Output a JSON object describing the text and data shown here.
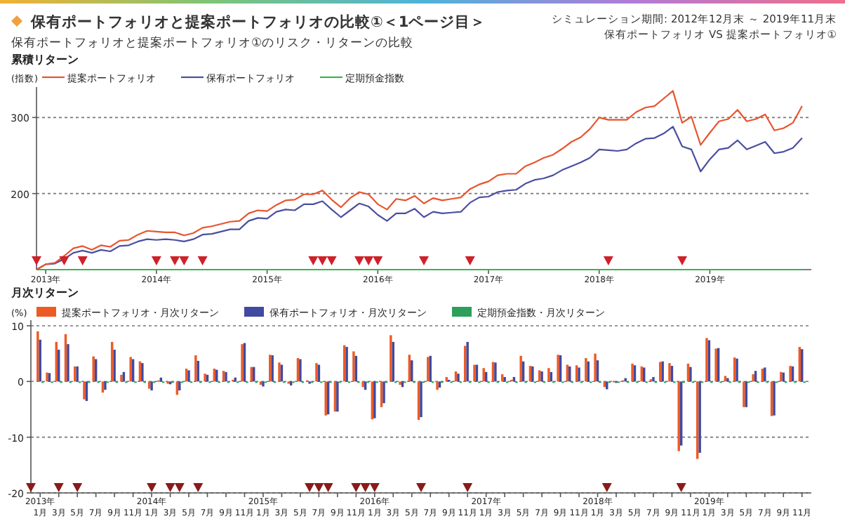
{
  "chart_data": [
    {
      "type": "other",
      "title": "保有ポートフォリオと提案ポートフォリオの比較①＜1ページ目＞",
      "subtitle": "保有ポートフォリオと提案ポートフォリオ①のリスク・リターンの比較",
      "annotations": [
        "シミュレーション期間: 2012年12月末 ～ 2019年11月末",
        "保有ポートフォリオ VS 提案ポートフォリオ①"
      ]
    },
    {
      "type": "line",
      "title": "累積リターン",
      "ylabel": "(指数)",
      "legend": "top left",
      "grid": "y",
      "xlim": [
        "2012-12",
        "2019-12"
      ],
      "ylim": [
        100,
        340
      ],
      "yticks": [
        200,
        300
      ],
      "xticks": [
        {
          "value": "2013-01",
          "label": "2013年"
        },
        {
          "value": "2014-01",
          "label": "2014年"
        },
        {
          "value": "2015-01",
          "label": "2015年"
        },
        {
          "value": "2016-01",
          "label": "2016年"
        },
        {
          "value": "2017-01",
          "label": "2017年"
        },
        {
          "value": "2018-01",
          "label": "2018年"
        },
        {
          "value": "2019-01",
          "label": "2019年"
        }
      ],
      "x": [
        "2012-12",
        "2013-01",
        "2013-02",
        "2013-03",
        "2013-04",
        "2013-05",
        "2013-06",
        "2013-07",
        "2013-08",
        "2013-09",
        "2013-10",
        "2013-11",
        "2013-12",
        "2014-01",
        "2014-02",
        "2014-03",
        "2014-04",
        "2014-05",
        "2014-06",
        "2014-07",
        "2014-08",
        "2014-09",
        "2014-10",
        "2014-11",
        "2014-12",
        "2015-01",
        "2015-02",
        "2015-03",
        "2015-04",
        "2015-05",
        "2015-06",
        "2015-07",
        "2015-08",
        "2015-09",
        "2015-10",
        "2015-11",
        "2015-12",
        "2016-01",
        "2016-02",
        "2016-03",
        "2016-04",
        "2016-05",
        "2016-06",
        "2016-07",
        "2016-08",
        "2016-09",
        "2016-10",
        "2016-11",
        "2016-12",
        "2017-01",
        "2017-02",
        "2017-03",
        "2017-04",
        "2017-05",
        "2017-06",
        "2017-07",
        "2017-08",
        "2017-09",
        "2017-10",
        "2017-11",
        "2017-12",
        "2018-01",
        "2018-02",
        "2018-03",
        "2018-04",
        "2018-05",
        "2018-06",
        "2018-07",
        "2018-08",
        "2018-09",
        "2018-10",
        "2018-11",
        "2018-12",
        "2019-01",
        "2019-02",
        "2019-03",
        "2019-04",
        "2019-05",
        "2019-06",
        "2019-07",
        "2019-08",
        "2019-09",
        "2019-10",
        "2019-11"
      ],
      "series": [
        {
          "name": "定期預金指数",
          "color": "#3cb44b",
          "values": [
            100,
            100,
            100,
            100,
            100,
            100,
            100,
            100,
            100,
            100,
            100,
            100,
            100,
            100,
            100,
            100,
            100,
            100,
            100,
            100,
            100,
            100,
            100,
            100,
            100,
            100,
            100,
            100,
            100,
            100,
            100,
            100,
            100,
            100,
            100,
            100,
            100,
            100,
            100,
            100,
            100,
            100,
            100,
            100,
            100,
            100,
            100,
            100,
            100,
            100,
            100,
            100,
            100,
            100,
            100,
            100,
            100,
            100,
            100,
            100,
            100,
            100,
            100,
            100,
            100,
            100,
            100,
            100,
            100,
            100,
            100,
            100,
            100,
            100,
            100,
            100,
            100,
            100,
            100,
            100,
            100,
            100,
            100,
            100
          ]
        },
        {
          "name": "保有ポートフォリオ",
          "color": "#4a4fa0",
          "values": [
            100,
            107,
            108,
            114,
            122,
            125,
            122,
            126,
            124,
            131,
            132,
            137,
            140,
            139,
            140,
            139,
            137,
            140,
            146,
            147,
            150,
            153,
            153,
            164,
            168,
            167,
            176,
            179,
            178,
            186,
            186,
            190,
            179,
            169,
            178,
            187,
            183,
            172,
            164,
            174,
            174,
            180,
            169,
            176,
            174,
            175,
            176,
            188,
            195,
            196,
            202,
            204,
            205,
            213,
            218,
            220,
            224,
            231,
            236,
            241,
            247,
            258,
            257,
            256,
            258,
            266,
            272,
            273,
            279,
            288,
            262,
            258,
            229,
            245,
            258,
            260,
            270,
            258,
            263,
            268,
            253,
            255,
            260,
            273
          ]
        },
        {
          "name": "提案ポートフォリオ",
          "color": "#e8542e",
          "values": [
            100,
            107,
            109,
            118,
            128,
            131,
            126,
            132,
            130,
            138,
            139,
            146,
            151,
            150,
            149,
            149,
            145,
            148,
            155,
            157,
            160,
            163,
            164,
            174,
            178,
            177,
            185,
            191,
            192,
            199,
            199,
            204,
            192,
            182,
            194,
            202,
            199,
            186,
            179,
            193,
            191,
            197,
            187,
            194,
            191,
            193,
            195,
            206,
            212,
            216,
            224,
            226,
            226,
            236,
            241,
            247,
            251,
            259,
            268,
            274,
            285,
            300,
            297,
            297,
            297,
            307,
            313,
            315,
            325,
            335,
            293,
            301,
            264,
            280,
            295,
            298,
            310,
            295,
            298,
            304,
            283,
            286,
            293,
            315
          ]
        },
        {
          "type": "scatter",
          "marker": "triangle",
          "color": "#d0202a",
          "x": [
            "2012-12",
            "2013-03",
            "2013-05",
            "2014-01",
            "2014-03",
            "2014-04",
            "2014-06",
            "2015-06",
            "2015-07",
            "2015-08",
            "2015-11",
            "2015-12",
            "2016-01",
            "2016-06",
            "2016-11",
            "2018-02",
            "2018-10"
          ],
          "values": [
            112,
            112,
            112,
            112,
            112,
            112,
            112,
            112,
            112,
            112,
            112,
            112,
            112,
            112,
            112,
            112,
            112
          ]
        }
      ]
    },
    {
      "type": "bar",
      "title": "月次リターン",
      "ylabel": "(%)",
      "legend": "top left",
      "grid": "y",
      "xlim": [
        "2012-12",
        "2019-12"
      ],
      "ylim": [
        -20,
        11
      ],
      "yticks": [
        10,
        0,
        -10,
        -20
      ],
      "xticks": [
        {
          "value": "2013-01",
          "label": "2013年\n1月"
        },
        {
          "value": "2013-03",
          "label": "3月"
        },
        {
          "value": "2013-05",
          "label": "5月"
        },
        {
          "value": "2013-07",
          "label": "7月"
        },
        {
          "value": "2013-09",
          "label": "9月"
        },
        {
          "value": "2013-11",
          "label": "11月"
        },
        {
          "value": "2014-01",
          "label": "2014年\n1月"
        },
        {
          "value": "2014-03",
          "label": "3月"
        },
        {
          "value": "2014-05",
          "label": "5月"
        },
        {
          "value": "2014-07",
          "label": "7月"
        },
        {
          "value": "2014-09",
          "label": "9月"
        },
        {
          "value": "2014-11",
          "label": "11月"
        },
        {
          "value": "2015-01",
          "label": "2015年\n1月"
        },
        {
          "value": "2015-03",
          "label": "3月"
        },
        {
          "value": "2015-05",
          "label": "5月"
        },
        {
          "value": "2015-07",
          "label": "7月"
        },
        {
          "value": "2015-09",
          "label": "9月"
        },
        {
          "value": "2015-11",
          "label": "11月"
        },
        {
          "value": "2016-01",
          "label": "2016年\n1月"
        },
        {
          "value": "2016-03",
          "label": "3月"
        },
        {
          "value": "2016-05",
          "label": "5月"
        },
        {
          "value": "2016-07",
          "label": "7月"
        },
        {
          "value": "2016-09",
          "label": "9月"
        },
        {
          "value": "2016-11",
          "label": "11月"
        },
        {
          "value": "2017-01",
          "label": "2017年\n1月"
        },
        {
          "value": "2017-03",
          "label": "3月"
        },
        {
          "value": "2017-05",
          "label": "5月"
        },
        {
          "value": "2017-07",
          "label": "7月"
        },
        {
          "value": "2017-09",
          "label": "9月"
        },
        {
          "value": "2017-11",
          "label": "11月"
        },
        {
          "value": "2018-01",
          "label": "2018年\n1月"
        },
        {
          "value": "2018-03",
          "label": "3月"
        },
        {
          "value": "2018-05",
          "label": "5月"
        },
        {
          "value": "2018-07",
          "label": "7月"
        },
        {
          "value": "2018-09",
          "label": "9月"
        },
        {
          "value": "2018-11",
          "label": "11月"
        },
        {
          "value": "2019-01",
          "label": "2019年\n1月"
        },
        {
          "value": "2019-03",
          "label": "3月"
        },
        {
          "value": "2019-05",
          "label": "5月"
        },
        {
          "value": "2019-07",
          "label": "7月"
        },
        {
          "value": "2019-09",
          "label": "9月"
        },
        {
          "value": "2019-11",
          "label": "11月"
        }
      ],
      "x": [
        "2013-01",
        "2013-02",
        "2013-03",
        "2013-04",
        "2013-05",
        "2013-06",
        "2013-07",
        "2013-08",
        "2013-09",
        "2013-10",
        "2013-11",
        "2013-12",
        "2014-01",
        "2014-02",
        "2014-03",
        "2014-04",
        "2014-05",
        "2014-06",
        "2014-07",
        "2014-08",
        "2014-09",
        "2014-10",
        "2014-11",
        "2014-12",
        "2015-01",
        "2015-02",
        "2015-03",
        "2015-04",
        "2015-05",
        "2015-06",
        "2015-07",
        "2015-08",
        "2015-09",
        "2015-10",
        "2015-11",
        "2015-12",
        "2016-01",
        "2016-02",
        "2016-03",
        "2016-04",
        "2016-05",
        "2016-06",
        "2016-07",
        "2016-08",
        "2016-09",
        "2016-10",
        "2016-11",
        "2016-12",
        "2017-01",
        "2017-02",
        "2017-03",
        "2017-04",
        "2017-05",
        "2017-06",
        "2017-07",
        "2017-08",
        "2017-09",
        "2017-10",
        "2017-11",
        "2017-12",
        "2018-01",
        "2018-02",
        "2018-03",
        "2018-04",
        "2018-05",
        "2018-06",
        "2018-07",
        "2018-08",
        "2018-09",
        "2018-10",
        "2018-11",
        "2018-12",
        "2019-01",
        "2019-02",
        "2019-03",
        "2019-04",
        "2019-05",
        "2019-06",
        "2019-07",
        "2019-08",
        "2019-09",
        "2019-10",
        "2019-11"
      ],
      "series": [
        {
          "name": "提案ポートフォリオ・月次リターン",
          "color": "#ee5a24",
          "values": [
            9.0,
            1.6,
            7.1,
            8.5,
            2.7,
            -3.2,
            4.5,
            -2.0,
            7.1,
            1.2,
            4.4,
            3.6,
            -1.3,
            0.2,
            -0.4,
            -2.4,
            2.3,
            4.7,
            1.4,
            2.3,
            1.9,
            0.3,
            6.7,
            2.6,
            -0.6,
            4.8,
            3.4,
            -0.4,
            4.2,
            0.2,
            3.3,
            -6.1,
            -5.4,
            6.5,
            5.4,
            -1.0,
            -6.8,
            -4.6,
            8.3,
            -0.6,
            4.8,
            -6.9,
            4.4,
            -1.5,
            0.8,
            1.8,
            6.4,
            3.0,
            2.4,
            3.5,
            1.3,
            0.3,
            4.6,
            2.8,
            2.0,
            2.4,
            4.8,
            3.0,
            2.9,
            4.2,
            5.0,
            -1.0,
            0.1,
            0.2,
            3.2,
            2.7,
            0.4,
            3.5,
            3.3,
            -12.5,
            3.2,
            -13.9,
            7.8,
            5.9,
            1.0,
            4.3,
            -4.6,
            1.3,
            2.3,
            -6.2,
            1.7,
            2.8,
            6.2
          ]
        },
        {
          "name": "保有ポートフォリオ・月次リターン",
          "color": "#3f4aa0",
          "values": [
            7.5,
            1.5,
            5.7,
            6.7,
            2.7,
            -3.5,
            4.0,
            -1.5,
            5.7,
            1.7,
            4.0,
            3.3,
            -1.6,
            0.7,
            -0.5,
            -1.6,
            2.0,
            3.7,
            1.2,
            2.1,
            1.7,
            0.7,
            6.9,
            2.6,
            -0.9,
            4.7,
            3.0,
            -0.7,
            4.0,
            -0.4,
            3.0,
            -5.9,
            -5.4,
            6.2,
            4.6,
            -1.5,
            -6.6,
            -3.9,
            7.1,
            -1.0,
            3.8,
            -6.4,
            4.6,
            -1.1,
            0.3,
            1.4,
            7.1,
            3.0,
            1.7,
            3.4,
            0.8,
            0.8,
            3.6,
            2.7,
            1.8,
            1.7,
            4.7,
            2.7,
            2.5,
            3.6,
            3.8,
            -1.4,
            -0.2,
            0.6,
            2.9,
            2.5,
            0.8,
            3.6,
            2.8,
            -11.5,
            2.6,
            -12.8,
            7.4,
            6.0,
            0.6,
            4.1,
            -4.6,
            1.9,
            2.5,
            -6.1,
            1.6,
            2.7,
            5.8
          ]
        },
        {
          "name": "定期預金指数・月次リターン",
          "color": "#2ca05a",
          "values": [
            0,
            0,
            0,
            0,
            0,
            0,
            0,
            0,
            0,
            0,
            0,
            0,
            0,
            0,
            0,
            0,
            0,
            0,
            0,
            0,
            0,
            0,
            0,
            0,
            0,
            0,
            0,
            0,
            0,
            0,
            0,
            0,
            0,
            0,
            0,
            0,
            0,
            0,
            0,
            0,
            0,
            0,
            0,
            0,
            0,
            0,
            0,
            0,
            0,
            0,
            0,
            0,
            0,
            0,
            0,
            0,
            0,
            0,
            0,
            0,
            0,
            0,
            0,
            0,
            0,
            0,
            0,
            0,
            0,
            0,
            0,
            0,
            0,
            0,
            0,
            0,
            0,
            0,
            0,
            0,
            0,
            0,
            0
          ]
        },
        {
          "type": "scatter",
          "marker": "triangle",
          "color": "#8b1a1a",
          "x": [
            "2012-12",
            "2013-03",
            "2013-05",
            "2014-01",
            "2014-03",
            "2014-04",
            "2014-06",
            "2015-06",
            "2015-07",
            "2015-08",
            "2015-11",
            "2015-12",
            "2016-01",
            "2016-06",
            "2016-11",
            "2018-02",
            "2018-10"
          ],
          "values": [
            -19,
            -19,
            -19,
            -19,
            -19,
            -19,
            -19,
            -19,
            -19,
            -19,
            -19,
            -19,
            -19,
            -19,
            -19,
            -19,
            -19
          ]
        }
      ]
    }
  ]
}
